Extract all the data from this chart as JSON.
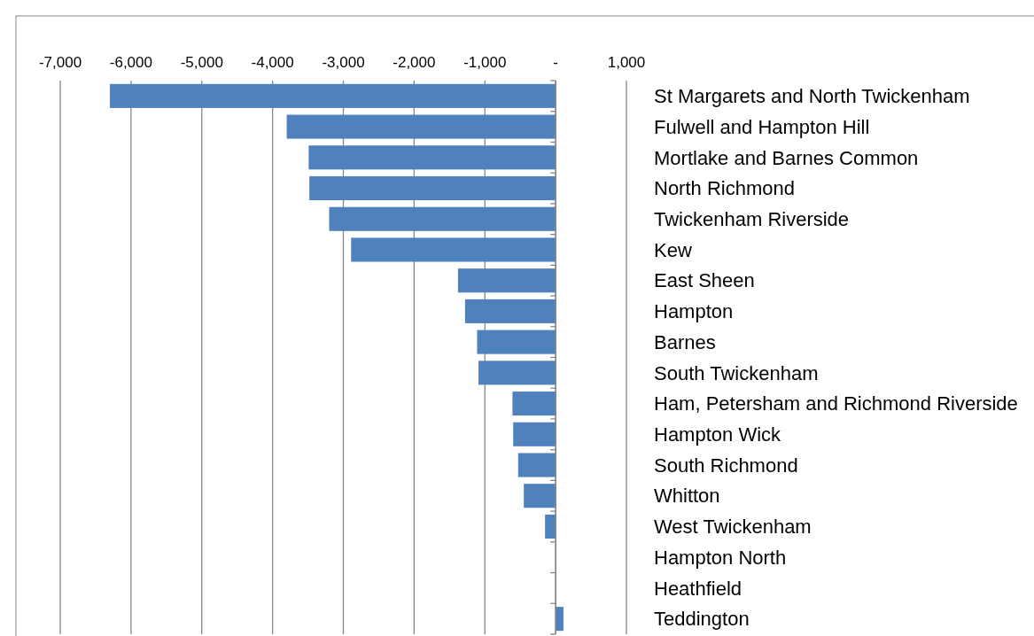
{
  "chart_data": {
    "type": "bar",
    "orientation": "horizontal",
    "categories": [
      "St Margarets and North Twickenham",
      "Fulwell and Hampton Hill",
      "Mortlake and Barnes Common",
      "North Richmond",
      "Twickenham Riverside",
      "Kew",
      "East Sheen",
      "Hampton",
      "Barnes",
      "South Twickenham",
      "Ham, Petersham and Richmond Riverside",
      "Hampton Wick",
      "South Richmond",
      "Whitton",
      "West Twickenham",
      "Hampton North",
      "Heathfield",
      "Teddington"
    ],
    "values": [
      -6300,
      -3800,
      -3490,
      -3480,
      -3200,
      -2890,
      -1380,
      -1280,
      -1110,
      -1090,
      -610,
      -600,
      -530,
      -450,
      -150,
      0,
      0,
      110
    ],
    "color": "#4f81bd",
    "xlim": [
      -7000,
      1000
    ],
    "xticks": [
      {
        "value": -7000,
        "label": "-7,000"
      },
      {
        "value": -6000,
        "label": "-6,000"
      },
      {
        "value": -5000,
        "label": "-5,000"
      },
      {
        "value": -4000,
        "label": "-4,000"
      },
      {
        "value": -3000,
        "label": "-3,000"
      },
      {
        "value": -2000,
        "label": "-2,000"
      },
      {
        "value": -1000,
        "label": "-1,000"
      },
      {
        "value": 0,
        "label": "-"
      },
      {
        "value": 1000,
        "label": "1,000"
      }
    ],
    "grid": "x"
  }
}
